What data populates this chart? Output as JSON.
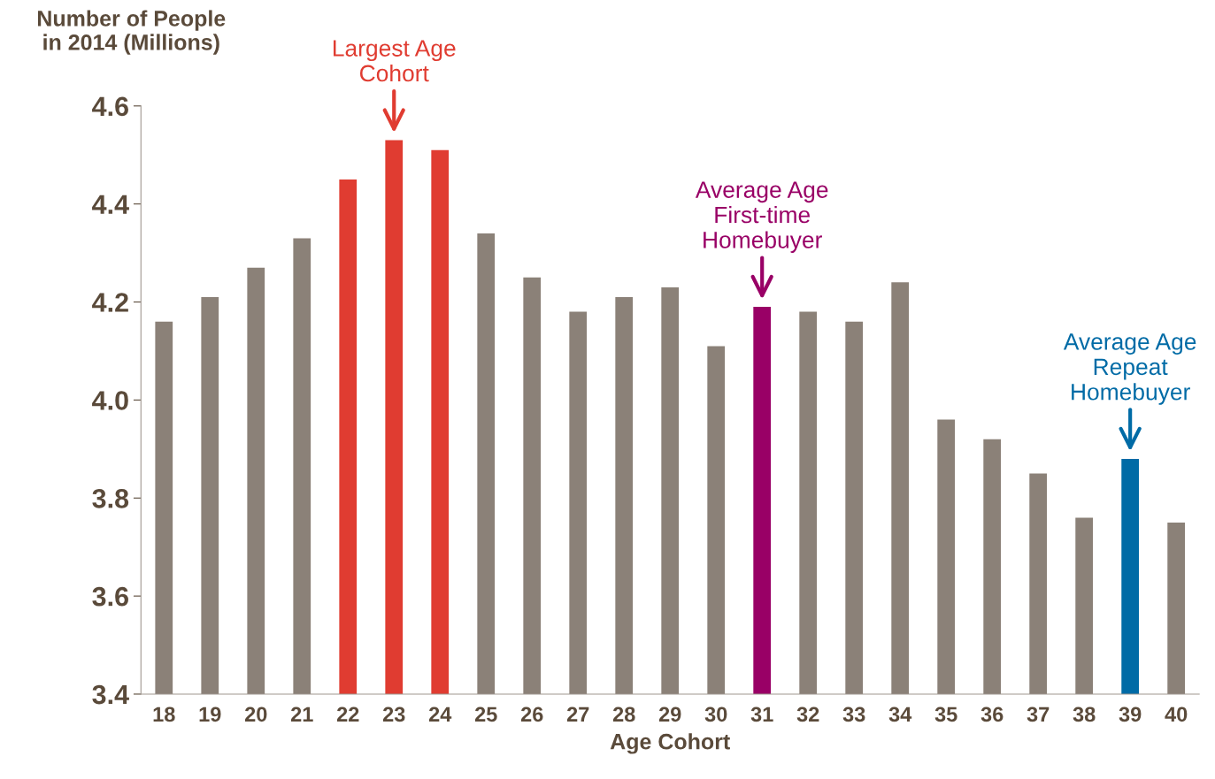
{
  "chart_data": {
    "type": "bar",
    "xlabel": "Age Cohort",
    "ylabel": "Number of People\nin 2014 (Millions)",
    "categories": [
      "18",
      "19",
      "20",
      "21",
      "22",
      "23",
      "24",
      "25",
      "26",
      "27",
      "28",
      "29",
      "30",
      "31",
      "32",
      "33",
      "34",
      "35",
      "36",
      "37",
      "38",
      "39",
      "40"
    ],
    "values": [
      4.16,
      4.21,
      4.27,
      4.33,
      4.45,
      4.53,
      4.51,
      4.34,
      4.25,
      4.18,
      4.21,
      4.23,
      4.11,
      4.19,
      4.18,
      4.16,
      4.24,
      3.96,
      3.92,
      3.85,
      3.76,
      3.88,
      3.75
    ],
    "colors": [
      "#8b8178",
      "#8b8178",
      "#8b8178",
      "#8b8178",
      "#e03c31",
      "#e03c31",
      "#e03c31",
      "#8b8178",
      "#8b8178",
      "#8b8178",
      "#8b8178",
      "#8b8178",
      "#8b8178",
      "#990066",
      "#8b8178",
      "#8b8178",
      "#8b8178",
      "#8b8178",
      "#8b8178",
      "#8b8178",
      "#8b8178",
      "#006ba6",
      "#8b8178"
    ],
    "ylim": [
      3.4,
      4.6
    ],
    "yticks": [
      3.4,
      3.6,
      3.8,
      {
        "value": 4,
        "label": "4.0"
      },
      4.2,
      4.4,
      4.6
    ],
    "grid": false,
    "legend": false,
    "annotations": [
      {
        "text": "Largest Age\nCohort",
        "x": "23",
        "y": 4.53
      },
      {
        "text": "Average Age\nFirst-time\nHomebuyer",
        "x": "31",
        "y": 4.19
      },
      {
        "text": "Average Age\nRepeat\nHomebuyer",
        "x": "39",
        "y": 3.88
      }
    ]
  }
}
